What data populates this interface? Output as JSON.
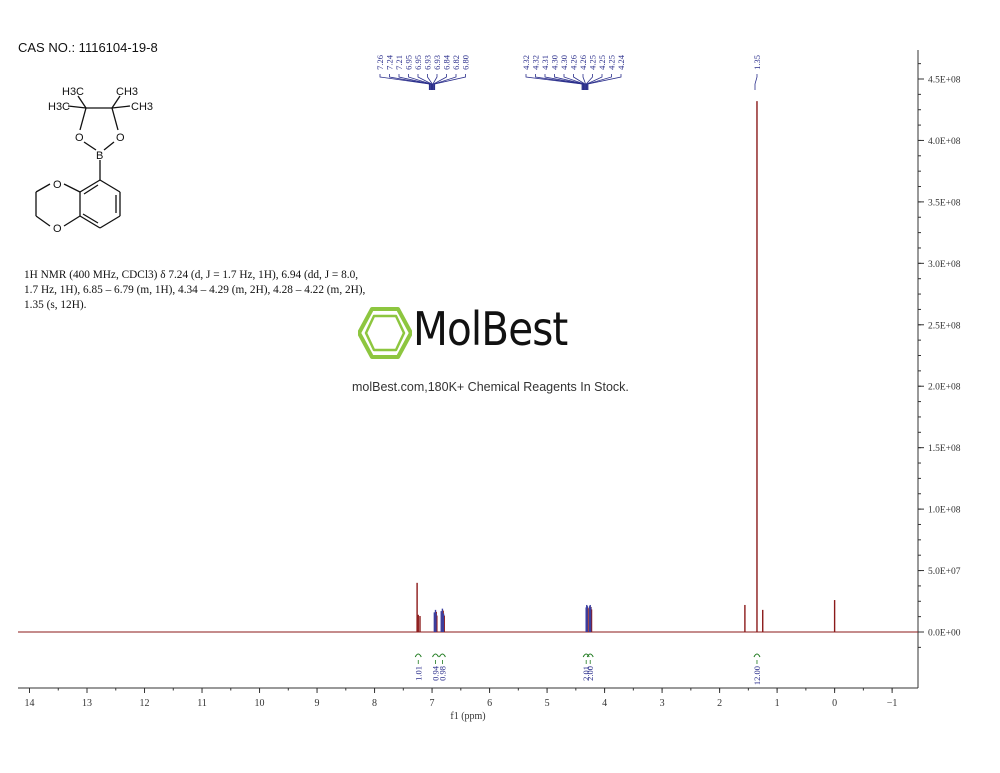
{
  "header": {
    "cas": "CAS NO.: 1116104-19-8"
  },
  "structure": {
    "labels": {
      "h3c_top": "H3C",
      "ch3_top": "CH3",
      "h3c_left": "H3C",
      "ch3_right": "CH3",
      "o_left": "O",
      "o_right": "O",
      "boron": "B",
      "o_ring_top": "O",
      "o_ring_bottom": "O"
    }
  },
  "description": {
    "lines": [
      "1H NMR (400 MHz, CDCl3) δ 7.24 (d, J = 1.7 Hz, 1H), 6.94 (dd, J = 8.0,",
      "1.7 Hz, 1H), 6.85 – 6.79 (m, 1H), 4.34 – 4.29 (m, 2H), 4.28 – 4.22 (m, 2H),",
      "1.35 (s, 12H)."
    ]
  },
  "watermark": {
    "brand": "MolBest",
    "slogan": "molBest.com,180K+ Chemical Reagents In Stock.",
    "color": "#8dc63f"
  },
  "chart_data": {
    "type": "line",
    "xlabel": "f1 (ppm)",
    "xlim": [
      14.2,
      -1.45
    ],
    "x_ticks": [
      "14",
      "13",
      "12",
      "11",
      "10",
      "9",
      "8",
      "7",
      "6",
      "5",
      "4",
      "3",
      "2",
      "1",
      "0",
      "-1"
    ],
    "ylim": [
      -22000000,
      450000000
    ],
    "y_ticks": [
      "4.5E+08",
      "4.0E+08",
      "3.5E+08",
      "3.0E+08",
      "2.5E+08",
      "2.0E+08",
      "1.5E+08",
      "1.0E+08",
      "5.0E+07",
      "0.0E+00"
    ],
    "y_tick_values": [
      450000000,
      400000000,
      350000000,
      300000000,
      250000000,
      200000000,
      150000000,
      100000000,
      50000000,
      0
    ],
    "peaks": [
      {
        "ppm": 7.26,
        "height": 40000000
      },
      {
        "ppm": 7.24,
        "height": 14000000
      },
      {
        "ppm": 7.21,
        "height": 13000000
      },
      {
        "ppm": 6.96,
        "height": 16000000
      },
      {
        "ppm": 6.94,
        "height": 18000000
      },
      {
        "ppm": 6.93,
        "height": 15000000
      },
      {
        "ppm": 6.84,
        "height": 17000000
      },
      {
        "ppm": 6.82,
        "height": 19000000
      },
      {
        "ppm": 6.8,
        "height": 15000000
      },
      {
        "ppm": 4.32,
        "height": 20000000
      },
      {
        "ppm": 4.31,
        "height": 22000000
      },
      {
        "ppm": 4.3,
        "height": 21000000
      },
      {
        "ppm": 4.26,
        "height": 21000000
      },
      {
        "ppm": 4.25,
        "height": 22000000
      },
      {
        "ppm": 4.24,
        "height": 20000000
      },
      {
        "ppm": 1.56,
        "height": 22000000
      },
      {
        "ppm": 1.35,
        "height": 432000000
      },
      {
        "ppm": 1.25,
        "height": 18000000
      },
      {
        "ppm": 0.0,
        "height": 26000000
      }
    ],
    "peak_labels_group1": [
      "7.26",
      "7.24",
      "7.21",
      "6.95",
      "6.95",
      "6.93",
      "6.93",
      "6.84",
      "6.82",
      "6.80"
    ],
    "peak_labels_group2": [
      "4.32",
      "4.32",
      "4.31",
      "4.30",
      "4.30",
      "4.26",
      "4.26",
      "4.25",
      "4.25",
      "4.25",
      "4.24"
    ],
    "peak_labels_group3": [
      "1.35"
    ],
    "integrals": [
      {
        "ppm": 7.24,
        "value": "1.01"
      },
      {
        "ppm": 6.94,
        "value": "0.94"
      },
      {
        "ppm": 6.82,
        "value": "0.98"
      },
      {
        "ppm": 4.32,
        "value": "2.01"
      },
      {
        "ppm": 4.25,
        "value": "2.00"
      },
      {
        "ppm": 1.35,
        "value": "12.00"
      }
    ],
    "colors": {
      "spectrum": "#8b1a1a",
      "peak_label": "#2b2f8c",
      "integral": "#1f7a1f",
      "axis": "#333333"
    }
  }
}
